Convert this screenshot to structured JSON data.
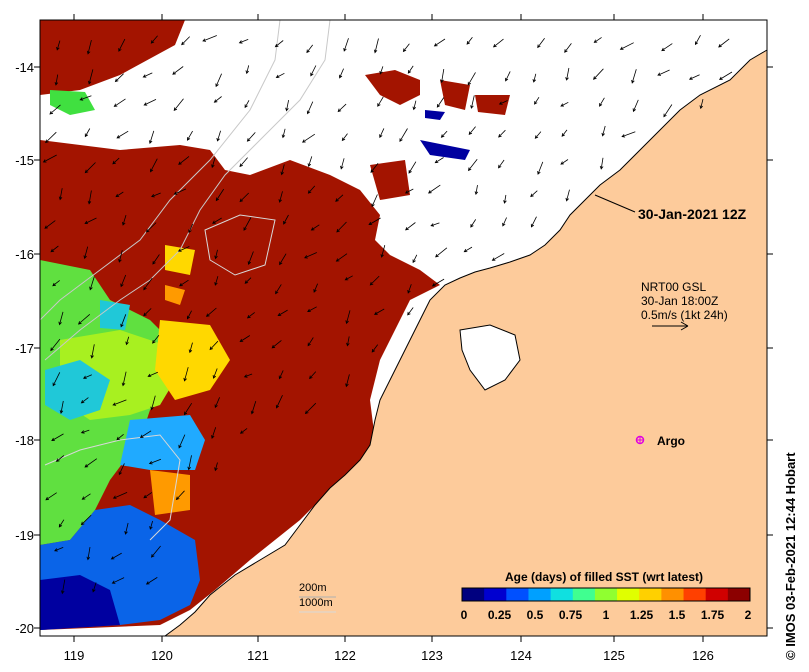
{
  "map": {
    "x_ticks": [
      "119",
      "120",
      "121",
      "122",
      "123",
      "124",
      "125",
      "126"
    ],
    "y_ticks": [
      "-14",
      "-15",
      "-16",
      "-17",
      "-18",
      "-19",
      "-20"
    ],
    "timestamp_label": "30-Jan-2021 12Z",
    "current_source": "NRT00 GSL",
    "current_time": "30-Jan 18:00Z",
    "current_scale": "0.5m/s (1kt 24h)",
    "argo_label": "Argo",
    "contour_200": "200m",
    "contour_1000": "1000m",
    "credit": "IMOS 03-Feb-2021 12:44 Hobart",
    "credit_symbol": "©"
  },
  "colorbar": {
    "title": "Age (days) of filled SST (wrt latest)",
    "tick_labels": [
      "0",
      "0.25",
      "0.5",
      "0.75",
      "1",
      "1.25",
      "1.5",
      "1.75",
      "2"
    ],
    "colors": [
      "#00007f",
      "#0000d0",
      "#0050ff",
      "#00a0ff",
      "#10e0e0",
      "#40ff90",
      "#90ff30",
      "#e0ff00",
      "#ffd000",
      "#ff9000",
      "#ff4000",
      "#d00000",
      "#8c0000"
    ]
  },
  "colors": {
    "land": "#fdcb9b",
    "ocean_old": "#a31400",
    "argo": "#e000e0"
  }
}
